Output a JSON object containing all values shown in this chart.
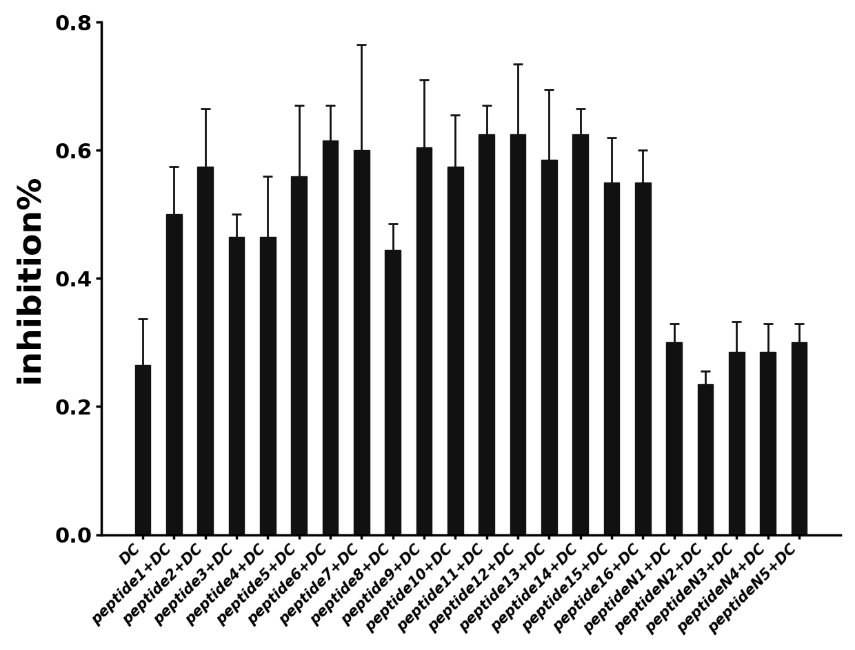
{
  "categories": [
    "DC",
    "peptide1+DC",
    "peptide2+DC",
    "peptide3+DC",
    "peptide4+DC",
    "peptide5+DC",
    "peptide6+DC",
    "peptide7+DC",
    "peptide8+DC",
    "peptide9+DC",
    "peptide10+DC",
    "peptide11+DC",
    "peptide12+DC",
    "peptide13+DC",
    "peptide14+DC",
    "peptide15+DC",
    "peptide16+DC",
    "peptideN1+DC",
    "peptideN2+DC",
    "peptideN3+DC",
    "peptideN4+DC",
    "peptideN5+DC"
  ],
  "values": [
    0.265,
    0.5,
    0.575,
    0.465,
    0.465,
    0.56,
    0.615,
    0.6,
    0.445,
    0.605,
    0.575,
    0.625,
    0.625,
    0.585,
    0.625,
    0.55,
    0.55,
    0.3,
    0.235,
    0.285,
    0.285,
    0.3
  ],
  "errors": [
    0.072,
    0.075,
    0.09,
    0.035,
    0.095,
    0.11,
    0.055,
    0.165,
    0.04,
    0.105,
    0.08,
    0.045,
    0.11,
    0.11,
    0.04,
    0.07,
    0.05,
    0.03,
    0.02,
    0.048,
    0.045,
    0.03
  ],
  "bar_color": "#111111",
  "error_color": "#111111",
  "ylabel": "inhibition%",
  "ylim": [
    0.0,
    0.8
  ],
  "yticks": [
    0.0,
    0.2,
    0.4,
    0.6,
    0.8
  ],
  "background_color": "#ffffff",
  "bar_width": 0.5,
  "ylabel_fontsize": 34,
  "ytick_fontsize": 22,
  "xtick_fontsize": 15,
  "xlabel_rotation": 45,
  "capsize": 5,
  "elinewidth": 2,
  "capthick": 2,
  "spine_linewidth": 2.5
}
